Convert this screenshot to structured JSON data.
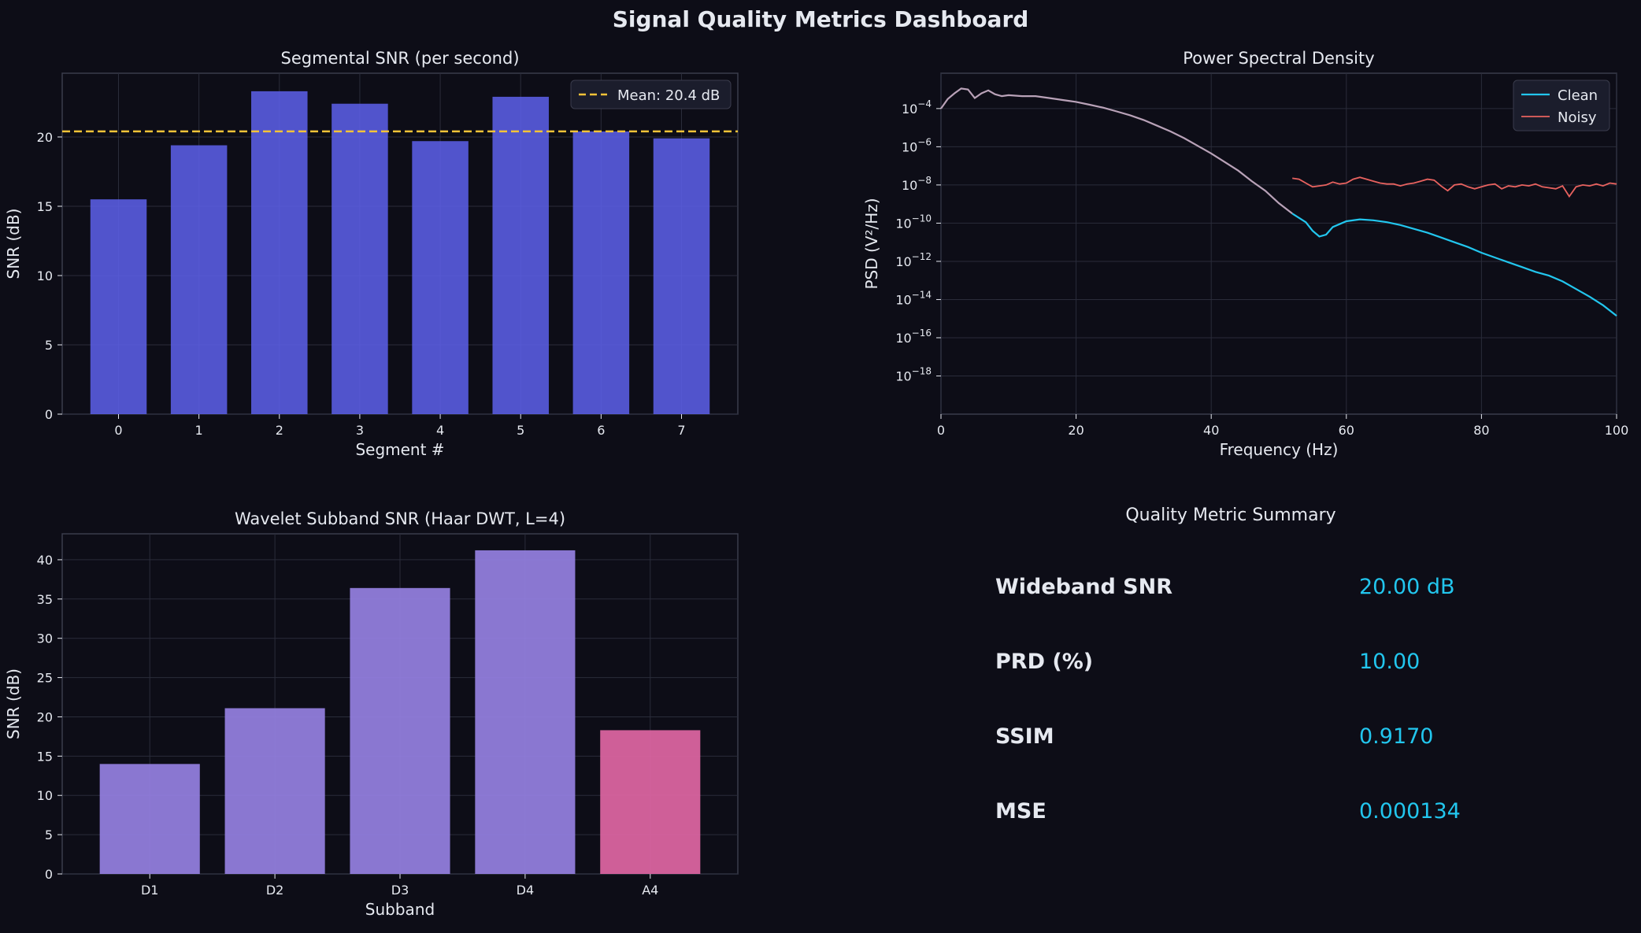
{
  "dashboard_title": "Signal Quality Metrics Dashboard",
  "colors": {
    "background": "#0d0d17",
    "axes_face": "#0d0d17",
    "grid": "#2a2c3a",
    "spine": "#3a3c4c",
    "text": "#e6e9f0",
    "seg_bar": "#5b5fe6",
    "mean_line": "#f6c338",
    "clean": "#22c6ee",
    "noisy": "#e8625f",
    "wavelet_detail": "#9580e2",
    "wavelet_approx": "#e066a4",
    "metric_value": "#22c6ee"
  },
  "chart_data": [
    {
      "id": "segmental_snr",
      "type": "bar",
      "title": "Segmental SNR (per second)",
      "xlabel": "Segment #",
      "ylabel": "SNR (dB)",
      "categories": [
        "0",
        "1",
        "2",
        "3",
        "4",
        "5",
        "6",
        "7"
      ],
      "values": [
        15.5,
        19.4,
        23.3,
        22.4,
        19.7,
        22.9,
        20.4,
        19.9
      ],
      "ylim": [
        0,
        24.6
      ],
      "yticks": [
        0,
        5,
        10,
        15,
        20
      ],
      "reference_line": {
        "value": 20.4,
        "label": "Mean: 20.4 dB"
      },
      "legend": "upper-right",
      "grid": true
    },
    {
      "id": "psd",
      "type": "line",
      "title": "Power Spectral Density",
      "xlabel": "Frequency (Hz)",
      "ylabel": "PSD (V²/Hz)",
      "xlim": [
        0,
        100
      ],
      "xticks": [
        0,
        20,
        40,
        60,
        80,
        100
      ],
      "yscale": "log",
      "ylim_log10": [
        -20,
        -2.15
      ],
      "ytick_exponents": [
        -4,
        -6,
        -8,
        -10,
        -12,
        -14,
        -16,
        -18
      ],
      "legend": "upper-right",
      "grid": true,
      "series": [
        {
          "name": "Clean",
          "x": [
            0,
            1,
            2,
            3,
            4,
            5,
            6,
            7,
            8,
            9,
            10,
            12,
            14,
            16,
            18,
            20,
            22,
            24,
            26,
            28,
            30,
            32,
            34,
            36,
            38,
            40,
            42,
            44,
            46,
            48,
            50,
            52,
            54,
            55,
            56,
            57,
            58,
            60,
            62,
            64,
            66,
            68,
            70,
            72,
            74,
            76,
            78,
            80,
            82,
            84,
            86,
            88,
            90,
            92,
            94,
            96,
            98,
            100
          ],
          "log10_y": [
            -4.0,
            -3.5,
            -3.2,
            -2.95,
            -3.0,
            -3.45,
            -3.2,
            -3.05,
            -3.25,
            -3.35,
            -3.3,
            -3.35,
            -3.35,
            -3.45,
            -3.55,
            -3.65,
            -3.8,
            -3.95,
            -4.15,
            -4.35,
            -4.6,
            -4.9,
            -5.2,
            -5.55,
            -5.95,
            -6.35,
            -6.8,
            -7.25,
            -7.8,
            -8.3,
            -8.95,
            -9.5,
            -9.95,
            -10.4,
            -10.7,
            -10.6,
            -10.2,
            -9.9,
            -9.8,
            -9.85,
            -9.95,
            -10.1,
            -10.3,
            -10.5,
            -10.75,
            -11.0,
            -11.25,
            -11.55,
            -11.8,
            -12.05,
            -12.3,
            -12.55,
            -12.75,
            -13.05,
            -13.45,
            -13.85,
            -14.3,
            -14.85
          ]
        },
        {
          "name": "Noisy",
          "x": [
            52,
            53,
            54,
            55,
            56,
            57,
            58,
            59,
            60,
            61,
            62,
            63,
            64,
            65,
            66,
            67,
            68,
            69,
            70,
            71,
            72,
            73,
            74,
            75,
            76,
            77,
            78,
            79,
            80,
            81,
            82,
            83,
            84,
            85,
            86,
            87,
            88,
            89,
            90,
            91,
            92,
            93,
            94,
            95,
            96,
            97,
            98,
            99,
            100
          ],
          "log10_y": [
            -7.65,
            -7.7,
            -7.9,
            -8.1,
            -8.05,
            -8.0,
            -7.85,
            -7.95,
            -7.9,
            -7.7,
            -7.6,
            -7.7,
            -7.8,
            -7.9,
            -7.95,
            -7.95,
            -8.05,
            -7.95,
            -7.9,
            -7.8,
            -7.7,
            -7.75,
            -8.05,
            -8.3,
            -8.0,
            -7.95,
            -8.1,
            -8.2,
            -8.1,
            -8.0,
            -7.95,
            -8.2,
            -8.05,
            -8.1,
            -8.0,
            -8.05,
            -7.95,
            -8.1,
            -8.15,
            -8.2,
            -8.05,
            -8.6,
            -8.1,
            -8.0,
            -8.05,
            -7.95,
            -8.05,
            -7.9,
            -7.95
          ]
        }
      ]
    },
    {
      "id": "wavelet_snr",
      "type": "bar",
      "title": "Wavelet Subband SNR (Haar DWT, L=4)",
      "xlabel": "Subband",
      "ylabel": "SNR (dB)",
      "categories": [
        "D1",
        "D2",
        "D3",
        "D4",
        "A4"
      ],
      "values": [
        14.0,
        21.1,
        36.4,
        41.2,
        18.3
      ],
      "ylim": [
        0,
        43.3
      ],
      "yticks": [
        0,
        5,
        10,
        15,
        20,
        25,
        30,
        35,
        40
      ],
      "grid": true
    }
  ],
  "summary": {
    "title": "Quality Metric Summary",
    "metrics": [
      {
        "label": "Wideband SNR",
        "value": "20.00 dB"
      },
      {
        "label": "PRD (%)",
        "value": "10.00"
      },
      {
        "label": "SSIM",
        "value": "0.9170"
      },
      {
        "label": "MSE",
        "value": "0.000134"
      }
    ]
  }
}
